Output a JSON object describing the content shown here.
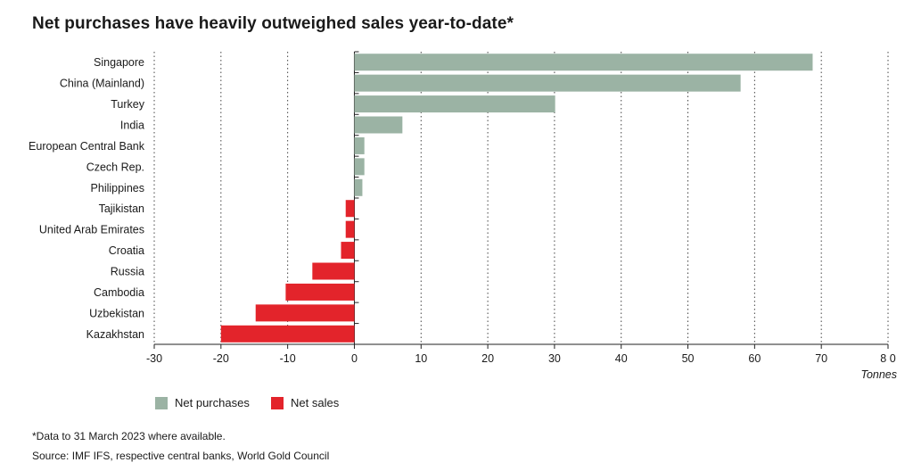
{
  "page": {
    "title": "Net purchases have heavily outweighed sales year-to-date*",
    "footnote": "*Data to 31 March 2023 where available.",
    "source": "Source: IMF IFS, respective central banks, World Gold Council"
  },
  "chart_data": {
    "type": "bar",
    "orientation": "horizontal",
    "title": "Net purchases have heavily outweighed sales year-to-date*",
    "xlabel": "Tonnes",
    "ylabel": "",
    "xlim": [
      -30,
      80
    ],
    "xticks": [
      -30,
      -20,
      -10,
      0,
      10,
      20,
      30,
      40,
      50,
      60,
      70,
      80
    ],
    "xtick_labels": [
      "-30",
      "-20",
      "-10",
      "0",
      "10",
      "20",
      "30",
      "40",
      "50",
      "60",
      "70",
      "8 0"
    ],
    "grid": "vertical dotted",
    "legend_placement": "bottom",
    "categories": [
      "Singapore",
      "China (Mainland)",
      "Turkey",
      "India",
      "European Central Bank",
      "Czech Rep.",
      "Philippines",
      "Tajikistan",
      "United Arab Emirates",
      "Croatia",
      "Russia",
      "Cambodia",
      "Uzbekistan",
      "Kazakhstan"
    ],
    "values": [
      68.7,
      57.9,
      30.1,
      7.2,
      1.5,
      1.5,
      1.2,
      -1.3,
      -1.3,
      -2.0,
      -6.3,
      -10.3,
      -14.8,
      -20.0
    ],
    "series": [
      {
        "name": "Net purchases",
        "color": "#9bb3a4"
      },
      {
        "name": "Net sales",
        "color": "#e3242b"
      }
    ]
  }
}
